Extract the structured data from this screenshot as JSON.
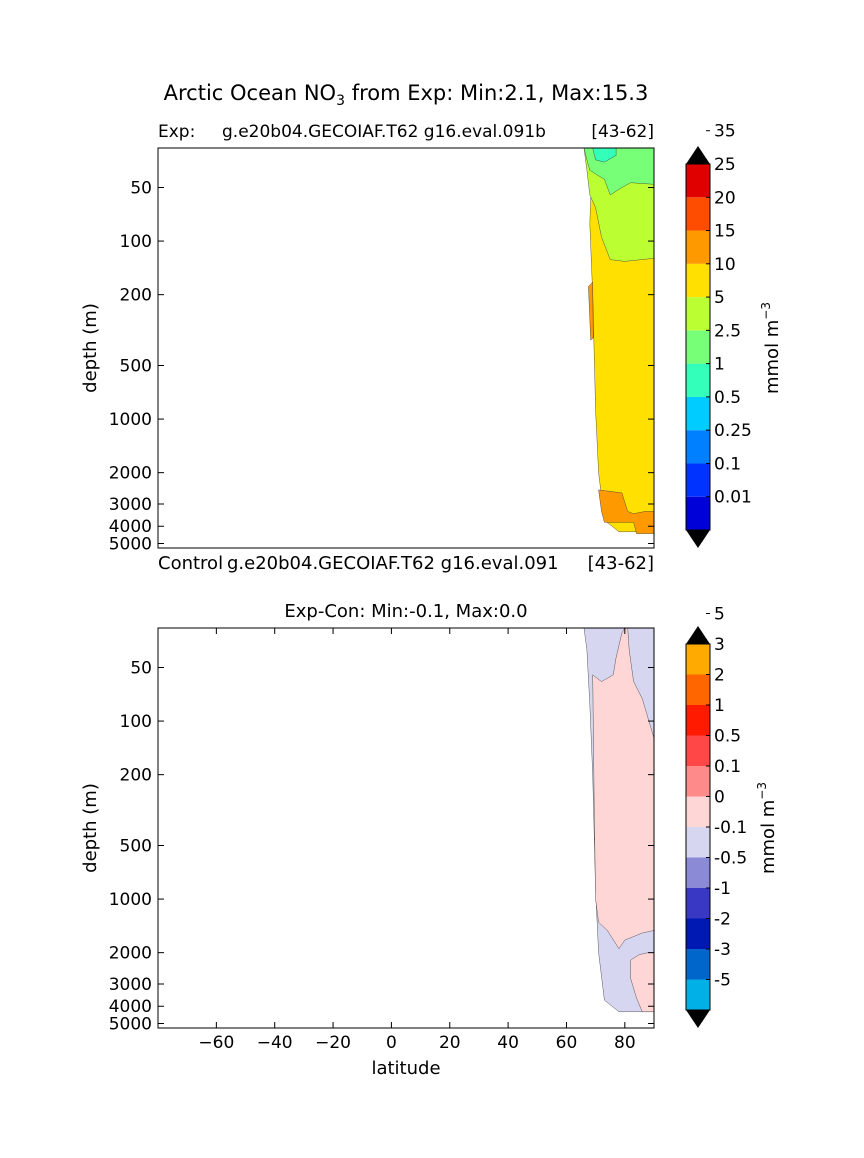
{
  "figure": {
    "title_prefix": "Arctic Ocean NO",
    "title_sub": "3",
    "title_suffix": " from Exp: Min:2.1, Max:15.3"
  },
  "chart_data": [
    {
      "type": "heatmap",
      "panel": "exp",
      "subtitle_left": "Exp:",
      "subtitle_mid": "g.e20b04.GECOIAF.T62 g16.eval.091b",
      "subtitle_right": "[43-62]",
      "ylabel": "depth (m)",
      "yscale": "log",
      "y_inverted": true,
      "ylim": [
        5300,
        30
      ],
      "yticks": [
        50,
        100,
        200,
        500,
        1000,
        2000,
        3000,
        4000,
        5000
      ],
      "xlim": [
        -80,
        90
      ],
      "cbar_label": "mmol m",
      "cbar_label_sup": "−3",
      "cbar_levels": [
        "0.01",
        "0.1",
        "0.25",
        "0.5",
        "1",
        "2.5",
        "5",
        "10",
        "15",
        "20",
        "25",
        "35"
      ],
      "cbar_colors": [
        "#000080",
        "#0000d8",
        "#0033ff",
        "#0080ff",
        "#00ccff",
        "#33ffbb",
        "#77ff77",
        "#bbff33",
        "#ffe000",
        "#ff9900",
        "#ff4d00",
        "#e00000",
        "#800000"
      ],
      "field": [
        {
          "level": 8,
          "color": "#ffe000",
          "poly": [
            [
              69,
              30
            ],
            [
              90,
              30
            ],
            [
              90,
              4300
            ],
            [
              78,
              4300
            ],
            [
              73,
              3700
            ],
            [
              71,
              2000
            ],
            [
              70,
              900
            ],
            [
              69,
              200
            ],
            [
              68,
              80
            ]
          ]
        },
        {
          "level": 6,
          "color": "#bbff33",
          "poly": [
            [
              66,
              30
            ],
            [
              90,
              30
            ],
            [
              90,
              125
            ],
            [
              80,
              130
            ],
            [
              75,
              127
            ],
            [
              72,
              95
            ],
            [
              70,
              65
            ],
            [
              68,
              55
            ],
            [
              67,
              40
            ]
          ]
        },
        {
          "level": 5,
          "color": "#77ff77",
          "poly": [
            [
              66,
              30
            ],
            [
              90,
              30
            ],
            [
              90,
              48
            ],
            [
              82,
              47
            ],
            [
              79,
              50
            ],
            [
              75,
              55
            ],
            [
              73,
              45
            ],
            [
              70,
              42
            ],
            [
              68,
              40
            ],
            [
              67,
              35
            ]
          ]
        },
        {
          "level": 4,
          "color": "#33ffbb",
          "poly": [
            [
              69,
              30
            ],
            [
              77,
              30
            ],
            [
              77,
              33
            ],
            [
              73,
              36
            ],
            [
              70,
              35
            ]
          ]
        },
        {
          "level": 9,
          "color": "#ff9900",
          "poly": [
            [
              71,
              2500
            ],
            [
              79,
              2600
            ],
            [
              81,
              3300
            ],
            [
              83,
              3400
            ],
            [
              87,
              3300
            ],
            [
              90,
              3300
            ],
            [
              90,
              4400
            ],
            [
              84,
              4400
            ],
            [
              83,
              3800
            ],
            [
              73,
              3800
            ],
            [
              72,
              3300
            ]
          ]
        },
        {
          "level": 9,
          "color": "#ff9900",
          "poly": [
            [
              67.5,
              180
            ],
            [
              69,
              170
            ],
            [
              69.2,
              350
            ],
            [
              68.3,
              360
            ]
          ]
        }
      ]
    },
    {
      "type": "heatmap",
      "panel": "diff",
      "subtitle_left": "Control",
      "subtitle_mid": "g.e20b04.GECOIAF.T62 g16.eval.091",
      "subtitle_right": "[43-62]",
      "title": "Exp-Con: Min:-0.1, Max:0.0",
      "xlabel": "latitude",
      "ylabel": "depth (m)",
      "yscale": "log",
      "y_inverted": true,
      "ylim": [
        5300,
        30
      ],
      "yticks": [
        50,
        100,
        200,
        500,
        1000,
        2000,
        3000,
        4000,
        5000
      ],
      "xlim": [
        -80,
        90
      ],
      "xticks": [
        -60,
        -40,
        -20,
        0,
        20,
        40,
        60,
        80
      ],
      "cbar_label": "mmol m",
      "cbar_label_sup": "−3",
      "cbar_levels": [
        "-5",
        "-3",
        "-2",
        "-1",
        "-0.5",
        "-0.1",
        "0",
        "0.1",
        "0.5",
        "1",
        "2",
        "3",
        "5"
      ],
      "cbar_colors": [
        "#00ffff",
        "#00b0e6",
        "#0066cc",
        "#0019b3",
        "#3838c4",
        "#8a8ad6",
        "#d6d6f0",
        "#ffd6d6",
        "#ff8a8a",
        "#ff4747",
        "#ff1a00",
        "#ff6600",
        "#ffaa00",
        "#ffff00"
      ],
      "field": [
        {
          "level": 6,
          "color": "#d6d6f0",
          "poly": [
            [
              66,
              30
            ],
            [
              90,
              30
            ],
            [
              90,
              4300
            ],
            [
              78,
              4300
            ],
            [
              73,
              3700
            ],
            [
              71,
              2000
            ],
            [
              70,
              900
            ],
            [
              69,
              200
            ],
            [
              68,
              80
            ],
            [
              67,
              40
            ]
          ]
        },
        {
          "level": 7,
          "color": "#ffd6d6",
          "poly": [
            [
              69,
              55
            ],
            [
              72,
              60
            ],
            [
              76,
              55
            ],
            [
              77,
              44
            ],
            [
              79,
              32
            ],
            [
              80,
              30
            ],
            [
              81,
              30
            ],
            [
              81.5,
              40
            ],
            [
              83,
              60
            ],
            [
              86,
              75
            ],
            [
              90,
              125
            ],
            [
              90,
              1500
            ],
            [
              86,
              1550
            ],
            [
              80,
              1700
            ],
            [
              78,
              1900
            ],
            [
              74,
              1500
            ],
            [
              71,
              1350
            ],
            [
              70,
              1000
            ],
            [
              69.5,
              300
            ]
          ]
        },
        {
          "level": 7,
          "color": "#ffd6d6",
          "poly": [
            [
              82,
              2200
            ],
            [
              85,
              2050
            ],
            [
              88,
              2000
            ],
            [
              90,
              2000
            ],
            [
              90,
              4300
            ],
            [
              86,
              4300
            ],
            [
              84,
              3600
            ],
            [
              82,
              2800
            ]
          ]
        }
      ]
    }
  ]
}
